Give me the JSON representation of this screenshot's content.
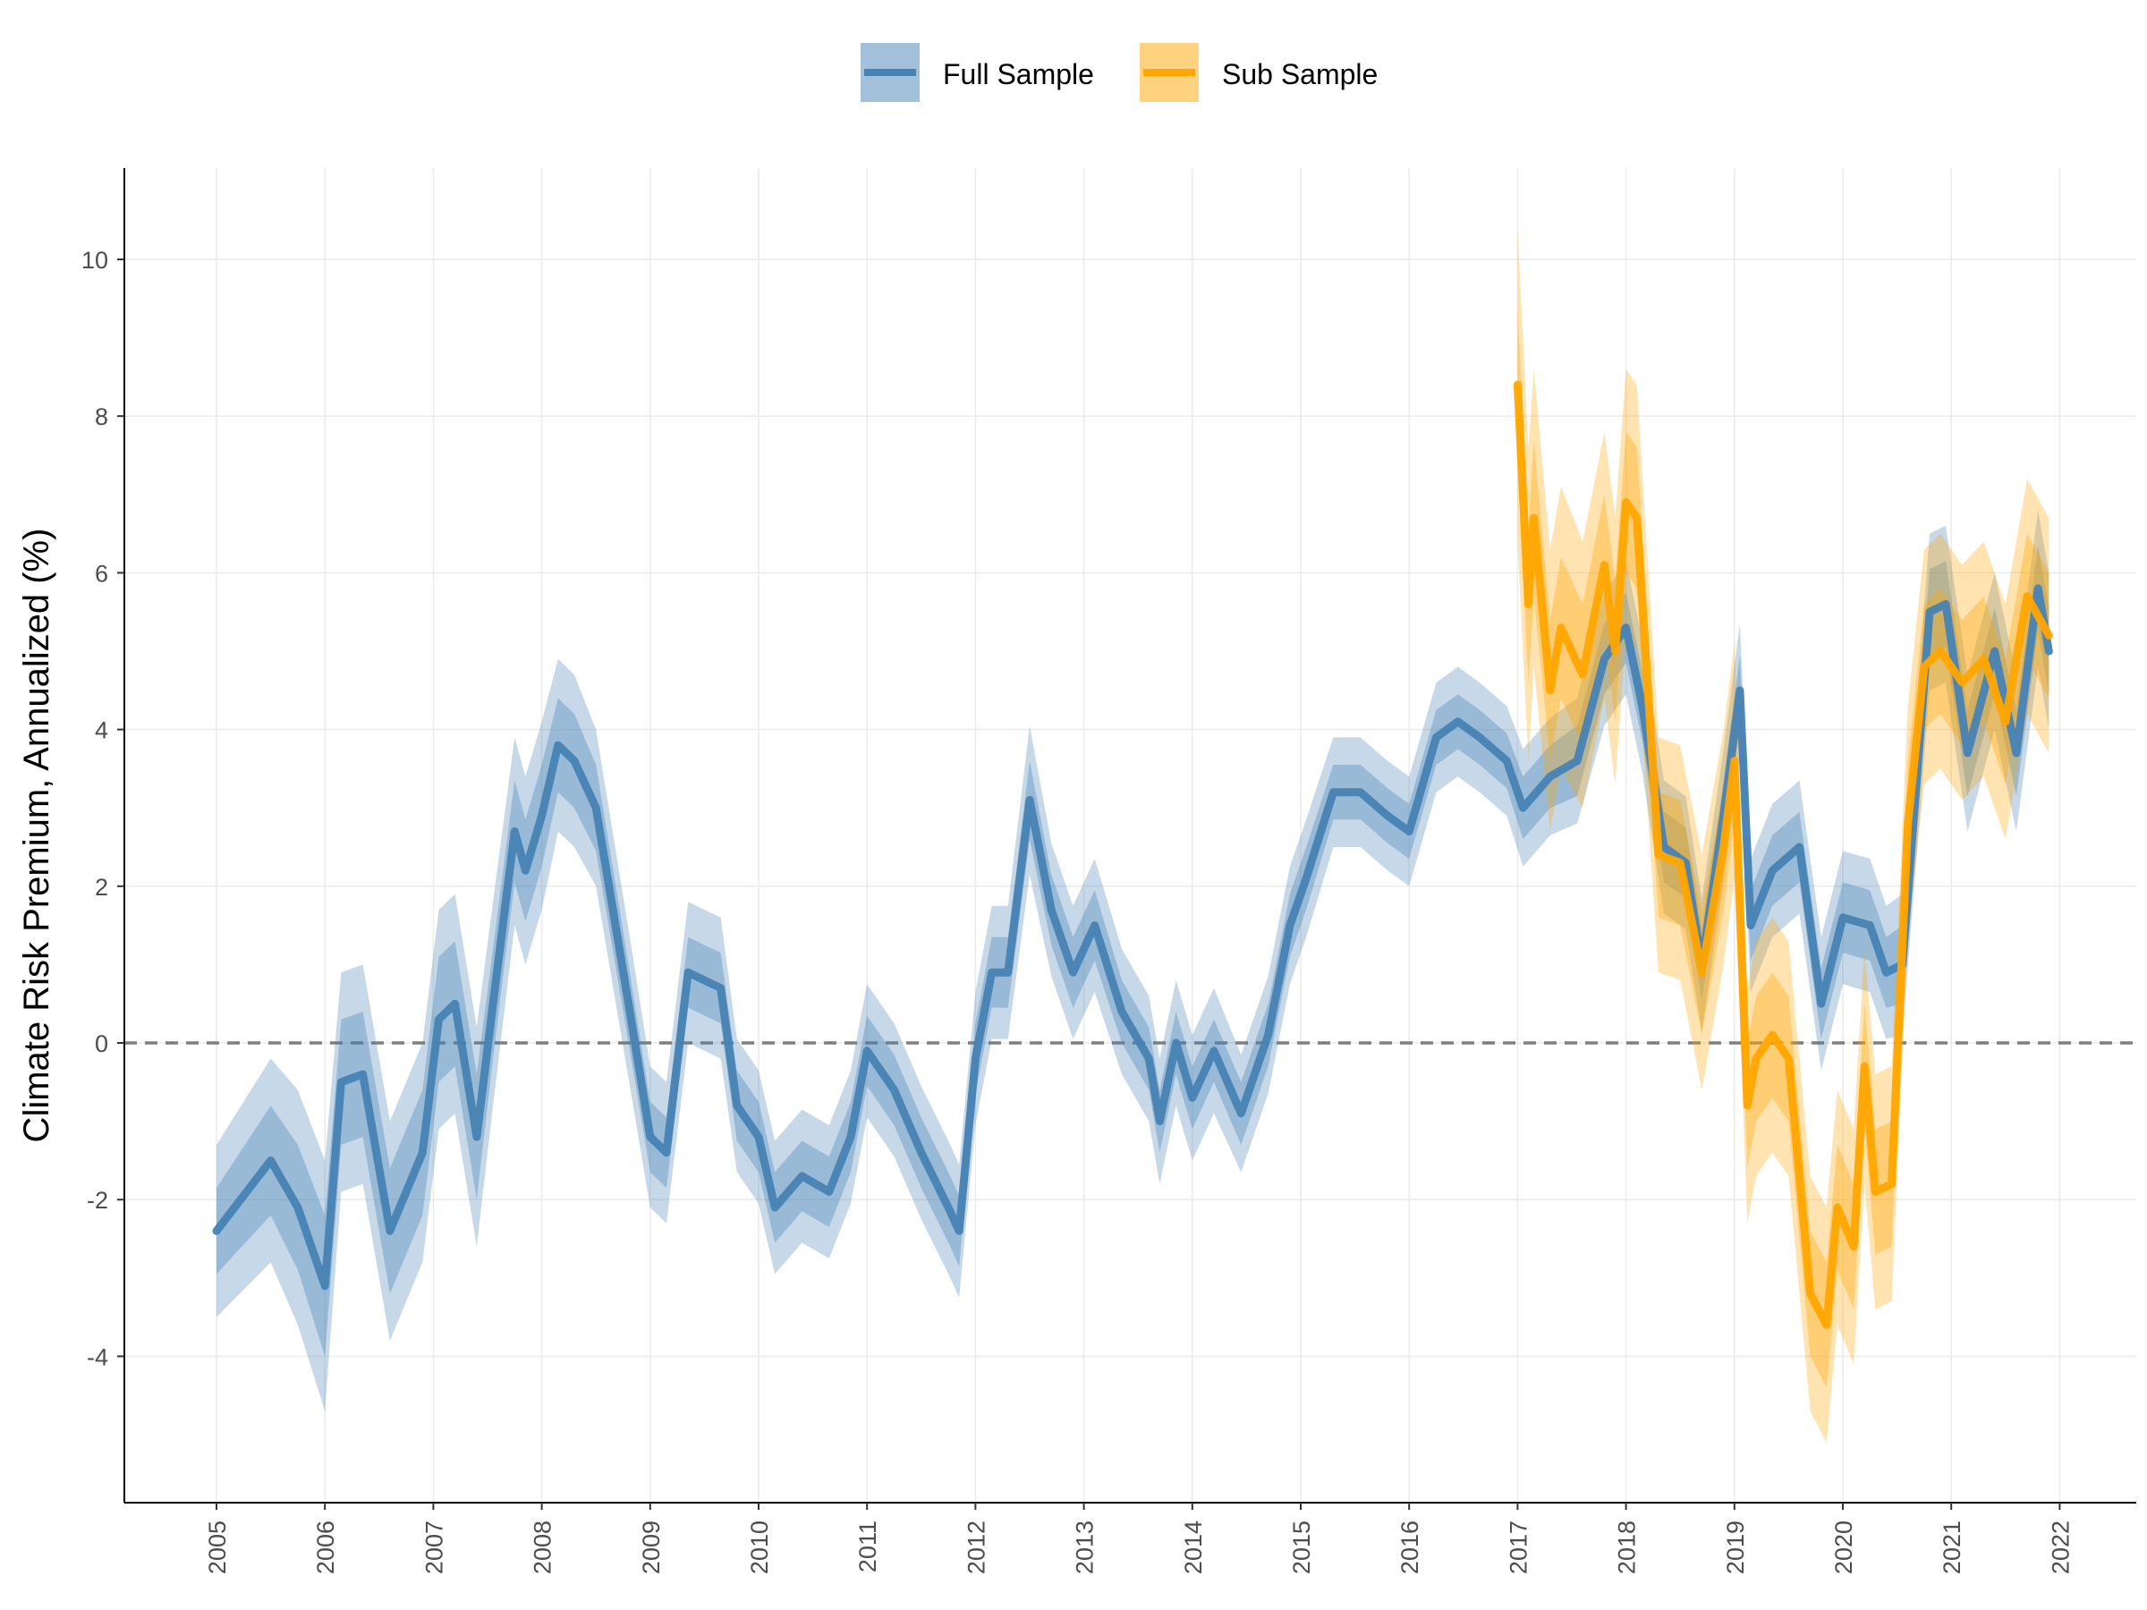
{
  "chart_data": {
    "type": "line",
    "title": "",
    "xlabel": "",
    "ylabel": "Climate Risk Premium, Annualized (%)",
    "xlim": [
      2004.15,
      2023.0
    ],
    "ylim": [
      -5.5,
      11.2
    ],
    "yticks": [
      -4,
      -2,
      0,
      2,
      4,
      6,
      8,
      10
    ],
    "ytick_labels": [
      "-4",
      "-2",
      "0",
      "2",
      "4",
      "6",
      "8",
      "10"
    ],
    "xticks": [
      2005,
      2006,
      2007,
      2008,
      2009,
      2010,
      2011,
      2012,
      2013,
      2014,
      2015,
      2016,
      2017,
      2018,
      2019,
      2020,
      2021,
      2022
    ],
    "xtick_labels": [
      "2005",
      "2006",
      "2007",
      "2008",
      "2009",
      "2010",
      "2011",
      "2012",
      "2013",
      "2014",
      "2015",
      "2016",
      "2017",
      "2018",
      "2019",
      "2020",
      "2021",
      "2022"
    ],
    "grid": true,
    "reference_line": {
      "y": 0,
      "style": "dashed",
      "color": "#7f7f7f"
    },
    "legend": {
      "position": "top",
      "entries": [
        "Full Sample",
        "Sub Sample"
      ]
    },
    "series": [
      {
        "name": "Full Sample",
        "color": "#4682b4",
        "x": [
          2005.0,
          2005.5,
          2005.75,
          2006.0,
          2006.15,
          2006.35,
          2006.6,
          2006.9,
          2007.05,
          2007.2,
          2007.4,
          2007.55,
          2007.75,
          2007.85,
          2008.0,
          2008.15,
          2008.3,
          2008.5,
          2008.8,
          2009.0,
          2009.15,
          2009.35,
          2009.65,
          2009.8,
          2010.0,
          2010.15,
          2010.4,
          2010.65,
          2010.85,
          2011.0,
          2011.25,
          2011.5,
          2011.75,
          2011.85,
          2012.0,
          2012.15,
          2012.3,
          2012.5,
          2012.7,
          2012.9,
          2013.1,
          2013.35,
          2013.6,
          2013.7,
          2013.85,
          2014.0,
          2014.2,
          2014.45,
          2014.7,
          2014.9,
          2015.05,
          2015.3,
          2015.55,
          2015.8,
          2016.0,
          2016.25,
          2016.45,
          2016.65,
          2016.9,
          2017.05,
          2017.3,
          2017.55,
          2017.8,
          2018.0,
          2018.15,
          2018.35,
          2018.55,
          2018.7,
          2018.9,
          2019.05,
          2019.15,
          2019.35,
          2019.6,
          2019.8,
          2020.0,
          2020.25,
          2020.4,
          2020.55,
          2020.8,
          2020.95,
          2021.15,
          2021.4,
          2021.6,
          2021.8,
          2021.9
        ],
        "values": [
          -2.4,
          -1.5,
          -2.1,
          -3.1,
          -0.5,
          -0.4,
          -2.4,
          -1.4,
          0.3,
          0.5,
          -1.2,
          0.5,
          2.7,
          2.2,
          2.9,
          3.8,
          3.6,
          3.0,
          0.5,
          -1.2,
          -1.4,
          0.9,
          0.7,
          -0.8,
          -1.2,
          -2.1,
          -1.7,
          -1.9,
          -1.2,
          -0.1,
          -0.6,
          -1.4,
          -2.1,
          -2.4,
          -0.2,
          0.9,
          0.9,
          3.1,
          1.7,
          0.9,
          1.5,
          0.4,
          -0.2,
          -1.0,
          0.0,
          -0.7,
          -0.1,
          -0.9,
          0.1,
          1.5,
          2.1,
          3.2,
          3.2,
          2.9,
          2.7,
          3.9,
          4.1,
          3.9,
          3.6,
          3.0,
          3.4,
          3.6,
          4.9,
          5.3,
          4.3,
          2.5,
          2.3,
          1.0,
          2.9,
          4.5,
          1.5,
          2.2,
          2.5,
          0.5,
          1.6,
          1.5,
          0.9,
          1.0,
          5.5,
          5.6,
          3.7,
          5.0,
          3.7,
          5.8,
          5.0
        ],
        "band_inner": [
          0.55,
          0.7,
          0.8,
          0.9,
          0.8,
          0.8,
          0.8,
          0.8,
          0.8,
          0.8,
          0.8,
          0.7,
          0.65,
          0.65,
          0.65,
          0.6,
          0.6,
          0.55,
          0.5,
          0.45,
          0.45,
          0.45,
          0.45,
          0.45,
          0.45,
          0.45,
          0.45,
          0.45,
          0.45,
          0.45,
          0.45,
          0.45,
          0.45,
          0.45,
          0.45,
          0.45,
          0.45,
          0.5,
          0.45,
          0.45,
          0.45,
          0.4,
          0.4,
          0.4,
          0.4,
          0.4,
          0.4,
          0.4,
          0.4,
          0.4,
          0.4,
          0.35,
          0.35,
          0.35,
          0.35,
          0.35,
          0.35,
          0.35,
          0.35,
          0.4,
          0.4,
          0.45,
          0.45,
          0.45,
          0.45,
          0.45,
          0.45,
          0.45,
          0.45,
          0.45,
          0.45,
          0.45,
          0.45,
          0.45,
          0.45,
          0.45,
          0.45,
          0.5,
          0.55,
          0.55,
          0.55,
          0.55,
          0.55,
          0.55,
          0.55
        ],
        "band_outer": [
          1.1,
          1.3,
          1.5,
          1.6,
          1.4,
          1.4,
          1.4,
          1.4,
          1.4,
          1.4,
          1.4,
          1.3,
          1.2,
          1.2,
          1.2,
          1.1,
          1.1,
          1.0,
          0.95,
          0.9,
          0.9,
          0.9,
          0.9,
          0.85,
          0.85,
          0.85,
          0.85,
          0.85,
          0.85,
          0.85,
          0.85,
          0.85,
          0.85,
          0.85,
          0.85,
          0.85,
          0.85,
          0.95,
          0.85,
          0.85,
          0.85,
          0.8,
          0.8,
          0.8,
          0.8,
          0.8,
          0.8,
          0.75,
          0.75,
          0.75,
          0.75,
          0.7,
          0.7,
          0.7,
          0.7,
          0.7,
          0.7,
          0.7,
          0.7,
          0.75,
          0.75,
          0.8,
          0.85,
          0.85,
          0.85,
          0.85,
          0.85,
          0.85,
          0.85,
          0.85,
          0.85,
          0.85,
          0.85,
          0.85,
          0.85,
          0.85,
          0.85,
          0.9,
          1.0,
          1.0,
          1.0,
          1.0,
          1.0,
          1.0,
          1.0
        ]
      },
      {
        "name": "Sub Sample",
        "color": "#ffa500",
        "x": [
          2017.0,
          2017.1,
          2017.15,
          2017.3,
          2017.4,
          2017.6,
          2017.8,
          2017.9,
          2018.0,
          2018.1,
          2018.3,
          2018.5,
          2018.7,
          2018.9,
          2019.0,
          2019.12,
          2019.2,
          2019.35,
          2019.5,
          2019.7,
          2019.85,
          2019.95,
          2020.1,
          2020.2,
          2020.3,
          2020.45,
          2020.6,
          2020.75,
          2020.9,
          2021.1,
          2021.3,
          2021.5,
          2021.7,
          2021.9
        ],
        "values": [
          8.4,
          5.6,
          6.7,
          4.5,
          5.3,
          4.7,
          6.1,
          5.0,
          6.9,
          6.7,
          2.4,
          2.3,
          0.9,
          2.5,
          3.6,
          -0.8,
          -0.2,
          0.1,
          -0.2,
          -3.2,
          -3.6,
          -2.1,
          -2.6,
          -0.3,
          -1.9,
          -1.8,
          2.8,
          4.8,
          5.0,
          4.6,
          4.9,
          4.1,
          5.7,
          5.2
        ],
        "band_inner": [
          1.0,
          1.0,
          1.0,
          0.9,
          0.9,
          0.9,
          0.9,
          0.9,
          0.9,
          0.9,
          0.8,
          0.8,
          0.8,
          0.8,
          0.8,
          0.8,
          0.8,
          0.8,
          0.8,
          0.8,
          0.8,
          0.8,
          0.8,
          0.8,
          0.8,
          0.8,
          0.8,
          0.8,
          0.8,
          0.8,
          0.8,
          0.8,
          0.8,
          0.8
        ],
        "band_outer": [
          2.0,
          2.0,
          1.9,
          1.8,
          1.8,
          1.7,
          1.7,
          1.7,
          1.7,
          1.7,
          1.5,
          1.5,
          1.5,
          1.5,
          1.5,
          1.5,
          1.5,
          1.5,
          1.5,
          1.5,
          1.5,
          1.5,
          1.5,
          1.5,
          1.5,
          1.5,
          1.5,
          1.5,
          1.5,
          1.5,
          1.5,
          1.5,
          1.5,
          1.5
        ]
      }
    ]
  }
}
